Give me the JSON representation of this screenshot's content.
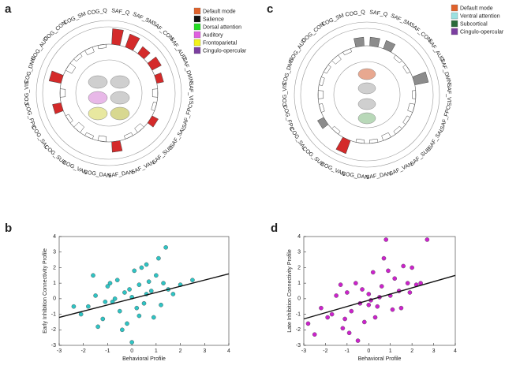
{
  "chart_data": [
    {
      "type": "radial_bar",
      "panel_label": "a",
      "categories": [
        "SAF_Q",
        "SAF_SM",
        "SAF_CON",
        "SAF_AUD",
        "SAF_DMN",
        "SAF_VIS",
        "SAF_FPC",
        "SAF_SAL",
        "SAF_SUB",
        "SAF_VAN",
        "SAF_DAN",
        "COG_DAN",
        "COG_VAN",
        "COG_SUB",
        "COG_SAL",
        "COG_FPC",
        "COG_VIS",
        "COG_DMN",
        "COG_AUD",
        "COG_CON",
        "COG_SM",
        "COG_Q"
      ],
      "values": [
        0.9,
        0.8,
        0.5,
        0.6,
        0.4,
        -0.3,
        -0.2,
        0.4,
        -0.3,
        -0.2,
        0.6,
        -0.3,
        -0.2,
        -0.4,
        -0.2,
        0.5,
        -0.3,
        0.7,
        -0.4,
        -0.2,
        -0.3,
        -0.2
      ],
      "colors": [
        "#d42a2a",
        "#d42a2a",
        "#d42a2a",
        "#d42a2a",
        "#d42a2a",
        "#ffffff",
        "#ffffff",
        "#d42a2a",
        "#ffffff",
        "#ffffff",
        "#d42a2a",
        "#ffffff",
        "#ffffff",
        "#ffffff",
        "#ffffff",
        "#d42a2a",
        "#ffffff",
        "#d42a2a",
        "#ffffff",
        "#ffffff",
        "#ffffff",
        "#ffffff"
      ],
      "legend": {
        "labels": [
          "Default mode",
          "Salience",
          "Dorsal attention",
          "Auditory",
          "Frontoparietal",
          "Cingulo-opercular"
        ],
        "colors": [
          "#e0622b",
          "#111111",
          "#22dd22",
          "#e060e0",
          "#f2f21a",
          "#7b3fa0"
        ]
      }
    },
    {
      "type": "scatter",
      "panel_label": "b",
      "color": "#2ec4c4",
      "x": [
        -2.1,
        -1.8,
        -1.5,
        -1.2,
        -1.0,
        -0.8,
        -0.6,
        -0.5,
        -0.3,
        -0.2,
        0,
        0.1,
        0.2,
        0.3,
        0.5,
        0.6,
        0.8,
        1.0,
        1.2,
        1.4,
        -1.4,
        -0.9,
        -0.4,
        0.4,
        0.9,
        1.5,
        2.0,
        -2.4,
        -0.7,
        0.7,
        1.7,
        -1.6,
        0.0,
        1.1,
        2.5,
        -0.1,
        0.3,
        -1.1,
        0.6,
        1.3
      ],
      "y": [
        -1.0,
        -0.5,
        0.2,
        -1.3,
        0.8,
        -0.2,
        1.2,
        -0.8,
        0.4,
        -1.6,
        0.1,
        1.8,
        -0.6,
        0.9,
        -0.3,
        2.2,
        0.5,
        1.5,
        -0.4,
        3.3,
        -1.8,
        1.0,
        -2.0,
        2.0,
        -1.2,
        0.6,
        0.9,
        -0.5,
        0.0,
        1.1,
        0.3,
        1.5,
        -2.8,
        2.6,
        1.2,
        0.6,
        -1.1,
        -0.2,
        0.3,
        1.0
      ],
      "fit_line": {
        "x": [
          -3,
          4
        ],
        "y": [
          -1.2,
          1.6
        ]
      },
      "xlim": [
        -3,
        4
      ],
      "ylim": [
        -3,
        4
      ],
      "xticks": [
        -3,
        -2,
        -1,
        0,
        1,
        2,
        3,
        4
      ],
      "yticks": [
        -3,
        -2,
        -1,
        0,
        1,
        2,
        3,
        4
      ],
      "xlabel": "Behavioral Profile",
      "ylabel": "Early Inhibition Connectivity Profile"
    },
    {
      "type": "radial_bar",
      "panel_label": "c",
      "categories": [
        "SAF_Q",
        "SAF_SM",
        "SAF_CON",
        "SAF_AUD",
        "SAF_DMN",
        "SAF_VIS",
        "SAF_FPC",
        "SAF_SAL",
        "SAF_SUB",
        "SAF_VAN",
        "SAF_DAN",
        "COG_DAN",
        "COG_VAN",
        "COG_SUB",
        "COG_SAL",
        "COG_FPC",
        "COG_VIS",
        "COG_DMN",
        "COG_AUD",
        "COG_CON",
        "COG_SM",
        "COG_Q"
      ],
      "values": [
        0.5,
        0.5,
        -0.2,
        -0.2,
        0.8,
        -0.2,
        -0.3,
        -0.2,
        -0.2,
        -0.3,
        -0.2,
        -0.2,
        0.8,
        -0.2,
        0.4,
        -0.2,
        -0.3,
        -0.2,
        -0.2,
        -0.3,
        -0.2,
        0.5
      ],
      "colors": [
        "#8c8c8c",
        "#8c8c8c",
        "#ffffff",
        "#ffffff",
        "#8c8c8c",
        "#ffffff",
        "#ffffff",
        "#ffffff",
        "#ffffff",
        "#ffffff",
        "#ffffff",
        "#ffffff",
        "#d42a2a",
        "#ffffff",
        "#8c8c8c",
        "#ffffff",
        "#ffffff",
        "#ffffff",
        "#ffffff",
        "#ffffff",
        "#ffffff",
        "#8c8c8c"
      ],
      "legend": {
        "labels": [
          "Default mode",
          "Ventral attention",
          "Subcortical",
          "Cingulo-opercular"
        ],
        "colors": [
          "#e0622b",
          "#9be0e0",
          "#2a6a3a",
          "#7b3fa0"
        ]
      }
    },
    {
      "type": "scatter",
      "panel_label": "d",
      "color": "#cc22cc",
      "x": [
        -2.8,
        -2.2,
        -1.9,
        -1.5,
        -1.2,
        -1.0,
        -0.8,
        -0.6,
        -0.4,
        -0.2,
        0,
        0.2,
        0.4,
        0.6,
        0.8,
        1.0,
        1.2,
        1.5,
        1.8,
        2.0,
        2.7,
        -1.7,
        -0.9,
        -0.3,
        0.3,
        0.9,
        1.4,
        2.2,
        -1.3,
        0.1,
        0.7,
        1.1,
        -0.5,
        0.5,
        1.6,
        -2.5,
        2.4,
        0.0,
        -1.1,
        1.9
      ],
      "y": [
        -1.6,
        -0.6,
        -1.2,
        0.2,
        -1.9,
        0.4,
        -0.8,
        1.0,
        -0.3,
        -1.5,
        0.3,
        1.7,
        -0.5,
        0.8,
        3.8,
        0.2,
        1.3,
        -0.6,
        1.0,
        2.0,
        3.8,
        -1.0,
        -2.2,
        0.6,
        -1.2,
        1.8,
        0.5,
        0.9,
        0.9,
        -0.1,
        2.6,
        -0.7,
        -2.7,
        0.1,
        2.1,
        -2.3,
        1.0,
        -0.4,
        -1.3,
        0.4
      ],
      "fit_line": {
        "x": [
          -3,
          4
        ],
        "y": [
          -1.3,
          1.5
        ]
      },
      "xlim": [
        -3,
        4
      ],
      "ylim": [
        -3,
        4
      ],
      "xticks": [
        -3,
        -2,
        -1,
        0,
        1,
        2,
        3,
        4
      ],
      "yticks": [
        -3,
        -2,
        -1,
        0,
        1,
        2,
        3,
        4
      ],
      "xlabel": "Behavioral Profile",
      "ylabel": "Late Inhibition Connectivity Profile"
    }
  ]
}
